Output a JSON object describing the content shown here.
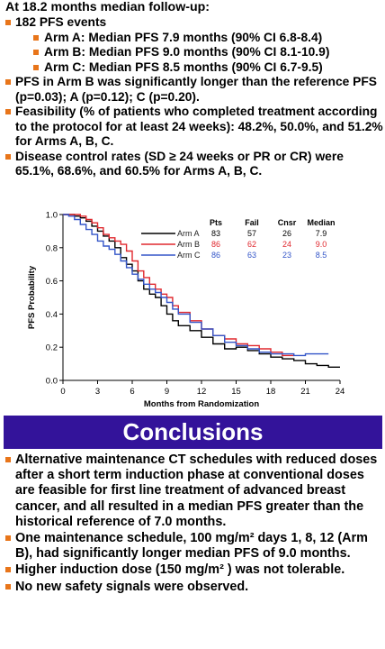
{
  "results": {
    "heading": "At 18.2 months median follow-up:",
    "events": "182 PFS events",
    "arms": [
      "Arm A: Median PFS 7.9 months (90% CI 6.8-8.4)",
      "Arm B: Median PFS 9.0 months (90% CI 8.1-10.9)",
      "Arm C: Median PFS 8.5 months (90% CI 6.7-9.5)"
    ],
    "bullets": [
      "PFS in Arm B was significantly longer than the reference PFS (p=0.03); A (p=0.12); C (p=0.20).",
      "Feasibility (% of patients who completed treatment according to the protocol for at least 24 weeks): 48.2%, 50.0%, and 51.2% for Arms A, B, C.",
      "Disease control rates (SD ≥ 24 weeks or PR or CR) were 65.1%, 68.6%, and 60.5% for Arms A, B, C."
    ]
  },
  "chart_data": {
    "type": "line",
    "title": "",
    "xlabel": "Months from Randomization",
    "ylabel": "PFS Probability",
    "xlim": [
      0,
      24
    ],
    "ylim": [
      0,
      1
    ],
    "xticks": [
      "0",
      "3",
      "6",
      "9",
      "12",
      "15",
      "18",
      "21",
      "24"
    ],
    "yticks": [
      "0.0",
      "0.2",
      "0.4",
      "0.6",
      "0.8",
      "1.0"
    ],
    "grid": false,
    "table_headers": [
      "Pts",
      "Fail",
      "Cnsr",
      "Median"
    ],
    "series": [
      {
        "name": "Arm A",
        "color": "#000000",
        "pts": "83",
        "fail": "57",
        "cnsr": "26",
        "median": "7.9",
        "x": [
          0,
          0.5,
          1,
          1.5,
          2,
          2.5,
          3,
          3.5,
          4,
          4.5,
          5,
          5.5,
          6,
          6.5,
          7,
          7.5,
          8,
          8.5,
          9,
          9.5,
          10,
          11,
          12,
          13,
          14,
          15,
          16,
          17,
          18,
          19,
          20,
          21,
          22,
          23,
          24
        ],
        "y": [
          1.0,
          1.0,
          0.99,
          0.98,
          0.96,
          0.93,
          0.9,
          0.87,
          0.84,
          0.8,
          0.74,
          0.7,
          0.66,
          0.6,
          0.55,
          0.52,
          0.5,
          0.45,
          0.4,
          0.36,
          0.33,
          0.3,
          0.26,
          0.22,
          0.19,
          0.2,
          0.18,
          0.16,
          0.14,
          0.13,
          0.12,
          0.1,
          0.09,
          0.08,
          0.08
        ]
      },
      {
        "name": "Arm B",
        "color": "#e0282e",
        "pts": "86",
        "fail": "62",
        "cnsr": "24",
        "median": "9.0",
        "x": [
          0,
          0.5,
          1,
          1.5,
          2,
          2.5,
          3,
          3.5,
          4,
          4.5,
          5,
          5.5,
          6,
          6.5,
          7,
          7.5,
          8,
          8.5,
          9,
          9.5,
          10,
          11,
          12,
          13,
          14,
          15,
          16,
          17,
          18,
          19,
          20
        ],
        "y": [
          1.0,
          1.0,
          1.0,
          0.99,
          0.97,
          0.95,
          0.92,
          0.88,
          0.86,
          0.84,
          0.82,
          0.78,
          0.72,
          0.66,
          0.62,
          0.58,
          0.55,
          0.52,
          0.5,
          0.45,
          0.41,
          0.36,
          0.31,
          0.27,
          0.25,
          0.22,
          0.21,
          0.19,
          0.17,
          0.15,
          0.15
        ]
      },
      {
        "name": "Arm C",
        "color": "#3355c8",
        "pts": "86",
        "fail": "63",
        "cnsr": "23",
        "median": "8.5",
        "x": [
          0,
          0.5,
          1,
          1.5,
          2,
          2.5,
          3,
          3.5,
          4,
          4.5,
          5,
          5.5,
          6,
          6.5,
          7,
          7.5,
          8,
          8.5,
          9,
          9.5,
          10,
          11,
          12,
          13,
          14,
          15,
          16,
          17,
          18,
          19,
          20,
          21,
          22,
          23
        ],
        "y": [
          1.0,
          0.99,
          0.97,
          0.94,
          0.91,
          0.88,
          0.84,
          0.81,
          0.79,
          0.76,
          0.72,
          0.68,
          0.64,
          0.61,
          0.58,
          0.55,
          0.53,
          0.5,
          0.47,
          0.43,
          0.4,
          0.35,
          0.31,
          0.27,
          0.23,
          0.21,
          0.19,
          0.17,
          0.16,
          0.16,
          0.15,
          0.16,
          0.16,
          0.16
        ]
      }
    ]
  },
  "banner": {
    "title": "Conclusions"
  },
  "conclusions": [
    "Alternative maintenance CT schedules with reduced doses after a short term induction phase at conventional doses are feasible for first line treatment of advanced breast cancer, and all resulted in a median PFS greater than the historical reference of 7.0 months.",
    "One maintenance schedule, 100 mg/m² days 1, 8, 12 (Arm B), had significantly longer median PFS of 9.0 months.",
    "Higher induction dose (150 mg/m² ) was not tolerable.",
    "No new safety signals were observed."
  ],
  "colors": {
    "bullet": "#e8751a",
    "banner_bg": "#33139a",
    "banner_text": "#ffffff"
  }
}
